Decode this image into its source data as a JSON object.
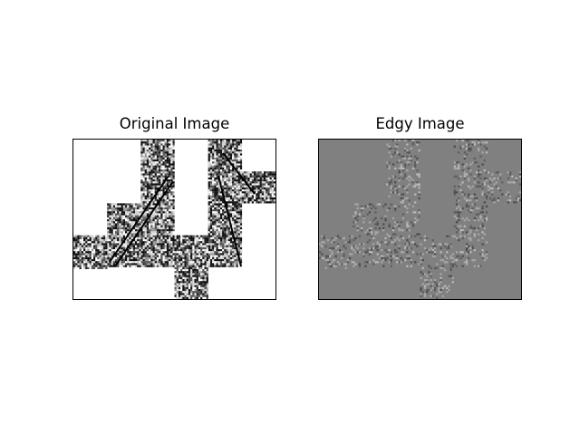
{
  "figure": {
    "background": "#ffffff",
    "panels": [
      {
        "title": "Original Image",
        "background": "#ffffff",
        "style": "high-contrast black-and-white noisy satellite texture"
      },
      {
        "title": "Edgy Image",
        "background": "#808080",
        "style": "mid-gray field with faint edge-detected noise"
      }
    ]
  },
  "mosaic_pattern": {
    "columns": 12,
    "rows": 10,
    "tile_rects": [
      [
        4,
        0,
        2,
        8
      ],
      [
        2,
        4,
        2,
        4
      ],
      [
        0,
        6,
        2,
        2
      ],
      [
        8,
        0,
        2,
        8
      ],
      [
        10,
        2,
        2,
        2
      ],
      [
        6,
        6,
        2,
        4
      ]
    ]
  }
}
